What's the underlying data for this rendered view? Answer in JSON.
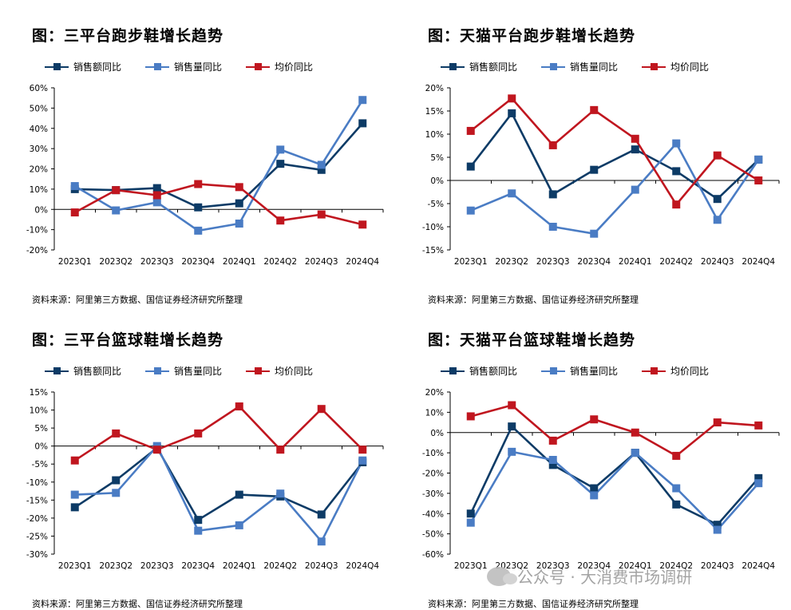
{
  "panels": [
    {
      "title": "图：三平台跑步鞋增长趋势",
      "source": "资料来源：阿里第三方数据、国信证券经济研究所整理",
      "legend": [
        "销售额同比",
        "销售量同比",
        "均价同比"
      ]
    },
    {
      "title": "图：天猫平台跑步鞋增长趋势",
      "source": "资料来源：阿里第三方数据、国信证券经济研究所整理",
      "legend": [
        "销售额同比",
        "销售量同比",
        "均价同比"
      ]
    },
    {
      "title": "图：三平台篮球鞋增长趋势",
      "source": "资料来源：阿里第三方数据、国信证券经济研究所整理",
      "legend": [
        "销售额同比",
        "销售量同比",
        "均价同比"
      ]
    },
    {
      "title": "图：天猫平台篮球鞋增长趋势",
      "source": "资料来源：阿里第三方数据、国信证券经济研究所整理",
      "legend": [
        "销售额同比",
        "销售量同比",
        "均价同比"
      ]
    }
  ],
  "watermark": "公众号 · 大消费市场调研",
  "colors": {
    "sales": "#0d3b66",
    "volume": "#4a7cc4",
    "price": "#c0161f"
  },
  "chart_data": [
    {
      "type": "line",
      "categories": [
        "2023Q1",
        "2023Q2",
        "2023Q3",
        "2023Q4",
        "2024Q1",
        "2024Q2",
        "2024Q3",
        "2024Q4"
      ],
      "yticks": [
        "60%",
        "50%",
        "40%",
        "30%",
        "20%",
        "10%",
        "0%",
        "-10%",
        "-20%"
      ],
      "ylim": [
        -20,
        60
      ],
      "ystep": 10,
      "series": [
        {
          "name": "销售额同比",
          "values": [
            10,
            9.5,
            10.5,
            1,
            3,
            22.5,
            19.5,
            42.5
          ]
        },
        {
          "name": "销售量同比",
          "values": [
            11.5,
            -0.5,
            3.5,
            -10.5,
            -7,
            29.5,
            22,
            54
          ]
        },
        {
          "name": "均价同比",
          "values": [
            -1.5,
            9.5,
            7,
            12.5,
            11,
            -5.5,
            -2.5,
            -7.5
          ]
        }
      ]
    },
    {
      "type": "line",
      "categories": [
        "2023Q1",
        "2023Q2",
        "2023Q3",
        "2023Q4",
        "2024Q1",
        "2024Q2",
        "2024Q3",
        "2024Q4"
      ],
      "yticks": [
        "20%",
        "15%",
        "10%",
        "5%",
        "0%",
        "-5%",
        "-10%",
        "-15%"
      ],
      "ylim": [
        -15,
        20
      ],
      "ystep": 5,
      "series": [
        {
          "name": "销售额同比",
          "values": [
            3,
            14.5,
            -3,
            2.3,
            6.7,
            2,
            -4,
            4.5
          ]
        },
        {
          "name": "销售量同比",
          "values": [
            -6.5,
            -2.8,
            -10,
            -11.5,
            -2,
            8,
            -8.5,
            4.5
          ]
        },
        {
          "name": "均价同比",
          "values": [
            10.7,
            17.7,
            7.6,
            15.2,
            9,
            -5.2,
            5.4,
            0
          ]
        }
      ]
    },
    {
      "type": "line",
      "categories": [
        "2023Q1",
        "2023Q2",
        "2023Q3",
        "2023Q4",
        "2024Q1",
        "2024Q2",
        "2024Q3",
        "2024Q4"
      ],
      "yticks": [
        "15%",
        "10%",
        "5%",
        "0%",
        "-5%",
        "-10%",
        "-15%",
        "-20%",
        "-25%",
        "-30%"
      ],
      "ylim": [
        -30,
        15
      ],
      "ystep": 5,
      "series": [
        {
          "name": "销售额同比",
          "values": [
            -17,
            -9.5,
            -0.5,
            -20.5,
            -13.5,
            -14,
            -19,
            -4.5
          ]
        },
        {
          "name": "销售量同比",
          "values": [
            -13.5,
            -13,
            0,
            -23.5,
            -22,
            -13.2,
            -26.5,
            -4
          ]
        },
        {
          "name": "均价同比",
          "values": [
            -4,
            3.5,
            -1,
            3.5,
            11,
            -1,
            10.3,
            -1
          ]
        }
      ]
    },
    {
      "type": "line",
      "categories": [
        "2023Q1",
        "2023Q2",
        "2023Q3",
        "2023Q4",
        "2024Q1",
        "2024Q2",
        "2024Q3",
        "2024Q4"
      ],
      "yticks": [
        "20%",
        "10%",
        "0%",
        "-10%",
        "-20%",
        "-30%",
        "-40%",
        "-50%",
        "-60%"
      ],
      "ylim": [
        -60,
        20
      ],
      "ystep": 10,
      "series": [
        {
          "name": "销售额同比",
          "values": [
            -40,
            3,
            -16,
            -27.5,
            -10,
            -35.5,
            -45.5,
            -22.5
          ]
        },
        {
          "name": "销售量同比",
          "values": [
            -44.5,
            -9.5,
            -13.5,
            -31,
            -10,
            -27.5,
            -48,
            -25
          ]
        },
        {
          "name": "均价同比",
          "values": [
            8,
            13.5,
            -4,
            6.5,
            0,
            -11.5,
            5,
            3.5
          ]
        }
      ]
    }
  ]
}
